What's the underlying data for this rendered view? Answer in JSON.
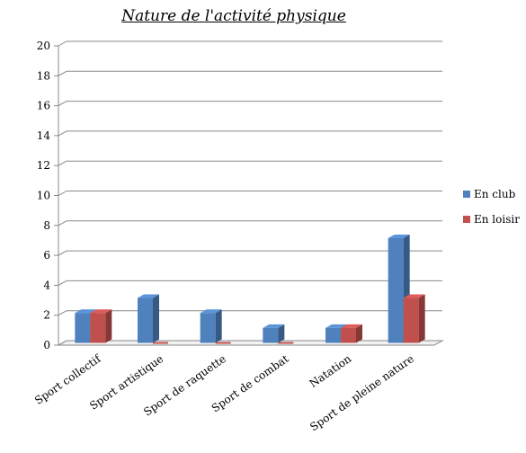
{
  "chart_data": {
    "type": "bar",
    "title": "Nature de l'activité physique",
    "categories": [
      "Sport collectif",
      "Sport artistique",
      "Sport de raquette",
      "Sport de combat",
      "Natation",
      "Sport de pleine nature"
    ],
    "series": [
      {
        "name": "En club",
        "values": [
          2,
          3,
          2,
          1,
          1,
          7
        ],
        "color": "#4F81BD"
      },
      {
        "name": "En loisir",
        "values": [
          2,
          0,
          0,
          0,
          1,
          3
        ],
        "color": "#C0504D"
      }
    ],
    "ylim": [
      0,
      20
    ],
    "yticks": [
      "0",
      "2",
      "4",
      "6",
      "8",
      "10",
      "12",
      "14",
      "16",
      "18",
      "20"
    ],
    "grid": true,
    "legend_position": "right"
  }
}
